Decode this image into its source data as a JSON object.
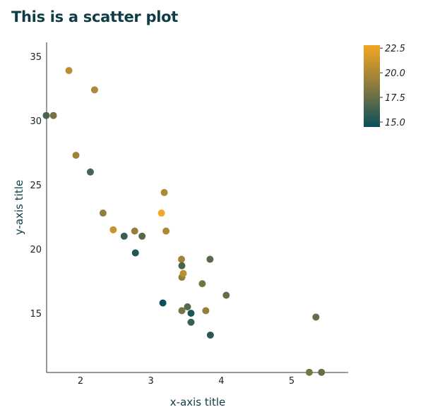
{
  "chart_data": {
    "type": "scatter",
    "title": "This is a scatter plot",
    "xlabel": "x-axis title",
    "ylabel": "y-axis title",
    "xlim": [
      1.513,
      5.8
    ],
    "ylim": [
      10.4,
      36.3
    ],
    "x_ticks": [
      2,
      3,
      4,
      5
    ],
    "y_ticks": [
      15,
      20,
      25,
      30,
      35
    ],
    "grid": false,
    "points": [
      {
        "x": 1.513,
        "y": 30.4,
        "c": 16.5
      },
      {
        "x": 1.615,
        "y": 30.4,
        "c": 18.0
      },
      {
        "x": 1.835,
        "y": 33.9,
        "c": 20.5
      },
      {
        "x": 1.935,
        "y": 27.3,
        "c": 19.5
      },
      {
        "x": 2.14,
        "y": 26.0,
        "c": 16.5
      },
      {
        "x": 2.2,
        "y": 32.4,
        "c": 20.0
      },
      {
        "x": 2.32,
        "y": 22.8,
        "c": 19.0
      },
      {
        "x": 2.465,
        "y": 21.5,
        "c": 21.0
      },
      {
        "x": 2.62,
        "y": 21.0,
        "c": 16.0
      },
      {
        "x": 2.77,
        "y": 21.4,
        "c": 19.0
      },
      {
        "x": 2.78,
        "y": 19.7,
        "c": 15.2
      },
      {
        "x": 2.875,
        "y": 21.0,
        "c": 17.0
      },
      {
        "x": 3.15,
        "y": 22.8,
        "c": 22.8
      },
      {
        "x": 3.17,
        "y": 15.8,
        "c": 14.5
      },
      {
        "x": 3.19,
        "y": 24.4,
        "c": 20.0
      },
      {
        "x": 3.215,
        "y": 21.4,
        "c": 20.0
      },
      {
        "x": 3.435,
        "y": 19.2,
        "c": 19.5
      },
      {
        "x": 3.44,
        "y": 18.7,
        "c": 16.5
      },
      {
        "x": 3.44,
        "y": 17.8,
        "c": 19.0
      },
      {
        "x": 3.44,
        "y": 15.2,
        "c": 18.0
      },
      {
        "x": 3.46,
        "y": 18.1,
        "c": 20.5
      },
      {
        "x": 3.52,
        "y": 15.5,
        "c": 17.0
      },
      {
        "x": 3.57,
        "y": 15.0,
        "c": 15.0
      },
      {
        "x": 3.57,
        "y": 14.3,
        "c": 16.0
      },
      {
        "x": 3.73,
        "y": 17.3,
        "c": 18.0
      },
      {
        "x": 3.78,
        "y": 15.2,
        "c": 19.0
      },
      {
        "x": 3.84,
        "y": 19.2,
        "c": 17.0
      },
      {
        "x": 3.845,
        "y": 13.3,
        "c": 15.5
      },
      {
        "x": 4.07,
        "y": 16.4,
        "c": 17.5
      },
      {
        "x": 5.25,
        "y": 10.4,
        "c": 18.0
      },
      {
        "x": 5.345,
        "y": 14.7,
        "c": 17.5
      },
      {
        "x": 5.424,
        "y": 10.4,
        "c": 17.5
      }
    ],
    "colorbar": {
      "range": [
        14.5,
        22.8
      ],
      "ticks": [
        15.0,
        17.5,
        20.0,
        22.5
      ],
      "tick_labels": [
        "15.0",
        "17.5",
        "20.0",
        "22.5"
      ],
      "colors": [
        "#0b4f5c",
        "#8a7a3f",
        "#f5a623"
      ]
    },
    "colors": {
      "title": "#0f3d45",
      "axis_title": "#0f3d45",
      "axis_line": "#333333"
    }
  }
}
